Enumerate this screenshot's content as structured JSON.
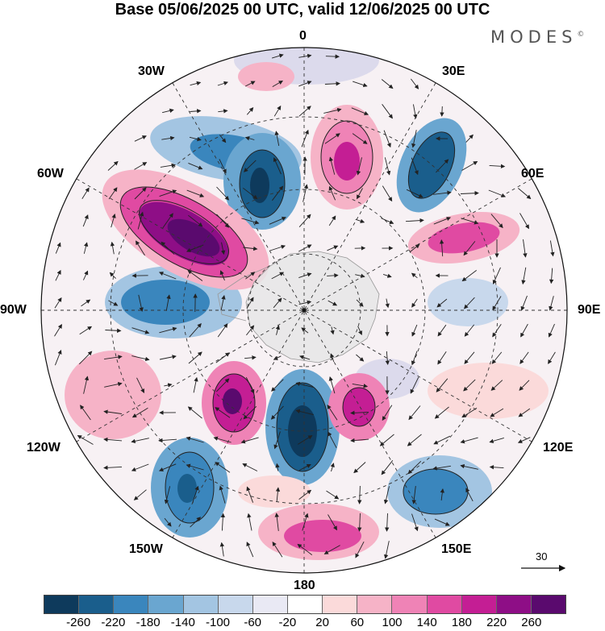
{
  "header": {
    "title": "Base 05/06/2025 00 UTC, valid 12/06/2025 00 UTC",
    "brand": "MODES",
    "brand_mark": "©"
  },
  "map": {
    "projection": "polar stereographic, south pole centered",
    "longitude_labels": {
      "lon_0": "0",
      "lon_30e": "30E",
      "lon_60e": "60E",
      "lon_90e": "90E",
      "lon_120e": "120E",
      "lon_150e": "150E",
      "lon_180": "180",
      "lon_150w": "150W",
      "lon_120w": "120W",
      "lon_90w": "90W",
      "lon_60w": "60W",
      "lon_30w": "30W"
    },
    "wind_scale_value": "30"
  },
  "colorbar": {
    "colors": [
      "#0e3a5c",
      "#1a5e8c",
      "#3a86bd",
      "#6aa6d0",
      "#a3c5e2",
      "#c8d8ec",
      "#e9e9f4",
      "#ffffff",
      "#fbdada",
      "#f6b3c7",
      "#ef83b6",
      "#e04aa2",
      "#c41e94",
      "#8e0e86",
      "#5a0a6e"
    ],
    "ticks": [
      "-260",
      "-220",
      "-180",
      "-140",
      "-100",
      "-60",
      "-20",
      "20",
      "60",
      "100",
      "140",
      "180",
      "220",
      "260"
    ]
  }
}
